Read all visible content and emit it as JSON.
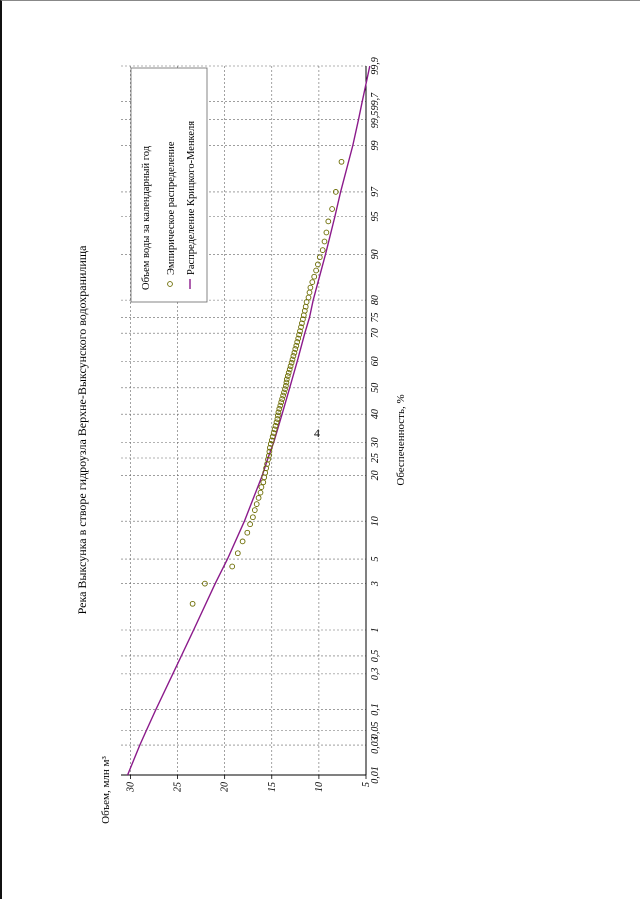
{
  "page": {
    "number": "4"
  },
  "chart_data": {
    "type": "scatter",
    "title": "Река Выксунка в створе гидроузла Верхне-Выксунского водохранилища",
    "xlabel": "Обеспеченность, %",
    "ylabel": "Объем, млн м³",
    "x_scale": "probability (normal)",
    "xlim": [
      0.01,
      99.9
    ],
    "ylim": [
      5,
      31
    ],
    "grid": true,
    "x_ticks": [
      "0,01",
      "0,03",
      "0,05",
      "0,1",
      "0,3",
      "0,5",
      "1",
      "3",
      "5",
      "10",
      "20",
      "25",
      "30",
      "40",
      "50",
      "60",
      "70",
      "75",
      "80",
      "90",
      "95",
      "97",
      "99",
      "99,5",
      "99,7",
      "99,9"
    ],
    "x_tick_values": [
      0.01,
      0.03,
      0.05,
      0.1,
      0.3,
      0.5,
      1,
      3,
      5,
      10,
      20,
      25,
      30,
      40,
      50,
      60,
      70,
      75,
      80,
      90,
      95,
      97,
      99,
      99.5,
      99.7,
      99.9
    ],
    "y_ticks": [
      "5",
      "10",
      "15",
      "20",
      "25",
      "30"
    ],
    "y_tick_values": [
      5,
      10,
      15,
      20,
      25,
      30
    ],
    "legend": {
      "title": "Объем воды за календарный год",
      "placement": "top-right",
      "items": [
        {
          "label": "Эмпирическое распределение",
          "marker": "circle"
        },
        {
          "label": "Распределение Крицкого-Менкеля",
          "marker": "line"
        }
      ]
    },
    "series": [
      {
        "name": "Эмпирическое распределение",
        "kind": "points",
        "color": "#6b6b00",
        "points": [
          [
            1.9,
            23.4
          ],
          [
            3.0,
            22.1
          ],
          [
            4.3,
            19.2
          ],
          [
            5.6,
            18.6
          ],
          [
            7.0,
            18.1
          ],
          [
            8.2,
            17.6
          ],
          [
            9.5,
            17.3
          ],
          [
            10.7,
            17.0
          ],
          [
            12.0,
            16.8
          ],
          [
            13.2,
            16.6
          ],
          [
            14.5,
            16.4
          ],
          [
            15.7,
            16.2
          ],
          [
            17.0,
            16.1
          ],
          [
            18.2,
            15.9
          ],
          [
            19.5,
            15.8
          ],
          [
            20.7,
            15.7
          ],
          [
            22.0,
            15.6
          ],
          [
            23.2,
            15.5
          ],
          [
            24.5,
            15.4
          ],
          [
            25.7,
            15.3
          ],
          [
            27.0,
            15.25
          ],
          [
            28.2,
            15.2
          ],
          [
            29.5,
            15.1
          ],
          [
            30.7,
            15.0
          ],
          [
            32.0,
            14.9
          ],
          [
            33.2,
            14.8
          ],
          [
            34.5,
            14.7
          ],
          [
            35.7,
            14.6
          ],
          [
            37.0,
            14.5
          ],
          [
            38.2,
            14.4
          ],
          [
            39.5,
            14.35
          ],
          [
            40.7,
            14.3
          ],
          [
            42.0,
            14.2
          ],
          [
            43.2,
            14.1
          ],
          [
            44.5,
            14.0
          ],
          [
            45.7,
            13.9
          ],
          [
            47.0,
            13.8
          ],
          [
            48.2,
            13.7
          ],
          [
            49.5,
            13.6
          ],
          [
            50.7,
            13.5
          ],
          [
            52.0,
            13.45
          ],
          [
            53.2,
            13.4
          ],
          [
            54.5,
            13.3
          ],
          [
            55.7,
            13.2
          ],
          [
            57.0,
            13.1
          ],
          [
            58.2,
            13.0
          ],
          [
            59.5,
            12.9
          ],
          [
            60.7,
            12.8
          ],
          [
            62.0,
            12.7
          ],
          [
            63.2,
            12.6
          ],
          [
            64.5,
            12.5
          ],
          [
            65.7,
            12.4
          ],
          [
            67.0,
            12.3
          ],
          [
            68.2,
            12.2
          ],
          [
            69.5,
            12.1
          ],
          [
            70.7,
            12.0
          ],
          [
            72.0,
            11.9
          ],
          [
            73.2,
            11.8
          ],
          [
            74.5,
            11.7
          ],
          [
            75.7,
            11.6
          ],
          [
            77.0,
            11.5
          ],
          [
            78.2,
            11.4
          ],
          [
            79.5,
            11.3
          ],
          [
            80.7,
            11.1
          ],
          [
            82.0,
            11.0
          ],
          [
            83.2,
            10.9
          ],
          [
            84.5,
            10.7
          ],
          [
            85.7,
            10.5
          ],
          [
            87.0,
            10.3
          ],
          [
            88.2,
            10.1
          ],
          [
            89.5,
            9.9
          ],
          [
            90.7,
            9.6
          ],
          [
            92.0,
            9.4
          ],
          [
            93.2,
            9.2
          ],
          [
            94.5,
            9.0
          ],
          [
            95.7,
            8.6
          ],
          [
            97.0,
            8.2
          ],
          [
            98.5,
            7.6
          ]
        ]
      },
      {
        "name": "Распределение Крицкого-Менкеля",
        "kind": "line",
        "color": "#8b1a8b",
        "points": [
          [
            0.01,
            30.3
          ],
          [
            0.03,
            29.0
          ],
          [
            0.05,
            28.3
          ],
          [
            0.1,
            27.3
          ],
          [
            0.3,
            25.5
          ],
          [
            0.5,
            24.6
          ],
          [
            1,
            23.3
          ],
          [
            3,
            21.0
          ],
          [
            5,
            19.7
          ],
          [
            10,
            17.9
          ],
          [
            20,
            16.0
          ],
          [
            25,
            15.4
          ],
          [
            30,
            14.8
          ],
          [
            40,
            13.9
          ],
          [
            50,
            13.1
          ],
          [
            60,
            12.3
          ],
          [
            70,
            11.5
          ],
          [
            75,
            11.0
          ],
          [
            80,
            10.6
          ],
          [
            90,
            9.3
          ],
          [
            95,
            8.3
          ],
          [
            97,
            7.7
          ],
          [
            99,
            6.4
          ],
          [
            99.5,
            5.8
          ],
          [
            99.7,
            5.4
          ],
          [
            99.9,
            4.6
          ]
        ]
      }
    ]
  }
}
